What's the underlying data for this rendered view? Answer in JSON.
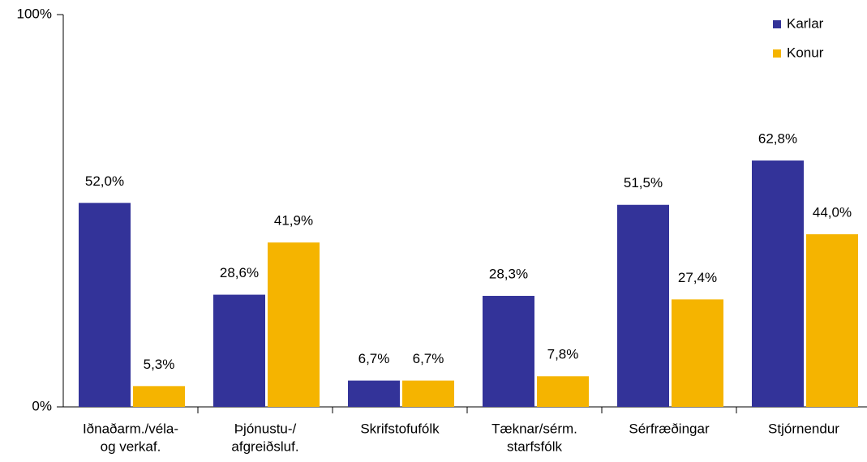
{
  "chart_data": {
    "type": "bar",
    "categories": [
      [
        "Iðnaðarm./véla-",
        "og verkaf."
      ],
      [
        "Þjónustu-/",
        "afgreiðsluf."
      ],
      [
        "Skrifstofufólk"
      ],
      [
        "Tæknar/sérm.",
        "starfsfólk"
      ],
      [
        "Sérfræðingar"
      ],
      [
        "Stjórnendur"
      ]
    ],
    "series": [
      {
        "name": "Karlar",
        "color": "#333399",
        "values": [
          52.0,
          28.6,
          6.7,
          28.3,
          51.5,
          62.8
        ],
        "value_labels": [
          "52,0%",
          "28,6%",
          "6,7%",
          "28,3%",
          "51,5%",
          "62,8%"
        ]
      },
      {
        "name": "Konur",
        "color": "#f5b400",
        "values": [
          5.3,
          41.9,
          6.7,
          7.8,
          27.4,
          44.0
        ],
        "value_labels": [
          "5,3%",
          "41,9%",
          "6,7%",
          "7,8%",
          "27,4%",
          "44,0%"
        ]
      }
    ],
    "ylim": [
      0,
      100
    ],
    "yticks": [
      {
        "value": 0,
        "label": "0%"
      },
      {
        "value": 100,
        "label": "100%"
      }
    ],
    "grid": false,
    "legend": "top-right"
  }
}
